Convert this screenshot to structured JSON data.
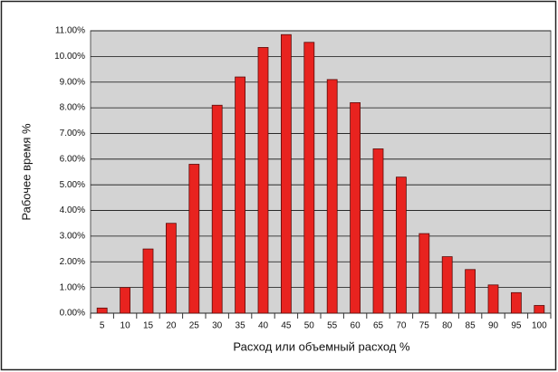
{
  "chart_data": {
    "type": "bar",
    "xlabel": "Расход или объемный расход %",
    "ylabel": "Рабочее время %",
    "categories": [
      "5",
      "10",
      "15",
      "20",
      "25",
      "30",
      "35",
      "40",
      "45",
      "50",
      "55",
      "60",
      "65",
      "70",
      "75",
      "80",
      "85",
      "90",
      "95",
      "100"
    ],
    "values": [
      0.2,
      1.0,
      2.5,
      3.5,
      5.8,
      8.1,
      9.2,
      10.35,
      10.85,
      10.55,
      9.1,
      8.2,
      6.4,
      5.3,
      3.1,
      2.2,
      1.7,
      1.1,
      0.8,
      0.3
    ],
    "color": "#e8231f",
    "ylim": [
      0,
      11
    ],
    "yticks": [
      {
        "value": 0,
        "label": "0.00%"
      },
      {
        "value": 1,
        "label": "1.00%"
      },
      {
        "value": 2,
        "label": "2.00%"
      },
      {
        "value": 3,
        "label": "3.00%"
      },
      {
        "value": 4,
        "label": "4.00%"
      },
      {
        "value": 5,
        "label": "5.00%"
      },
      {
        "value": 6,
        "label": "6.00%"
      },
      {
        "value": 7,
        "label": "7.00%"
      },
      {
        "value": 8,
        "label": "8.00%"
      },
      {
        "value": 9,
        "label": "9.00%"
      },
      {
        "value": 10,
        "label": "10.00%"
      },
      {
        "value": 11,
        "label": "11.00%"
      }
    ],
    "grid": true
  }
}
